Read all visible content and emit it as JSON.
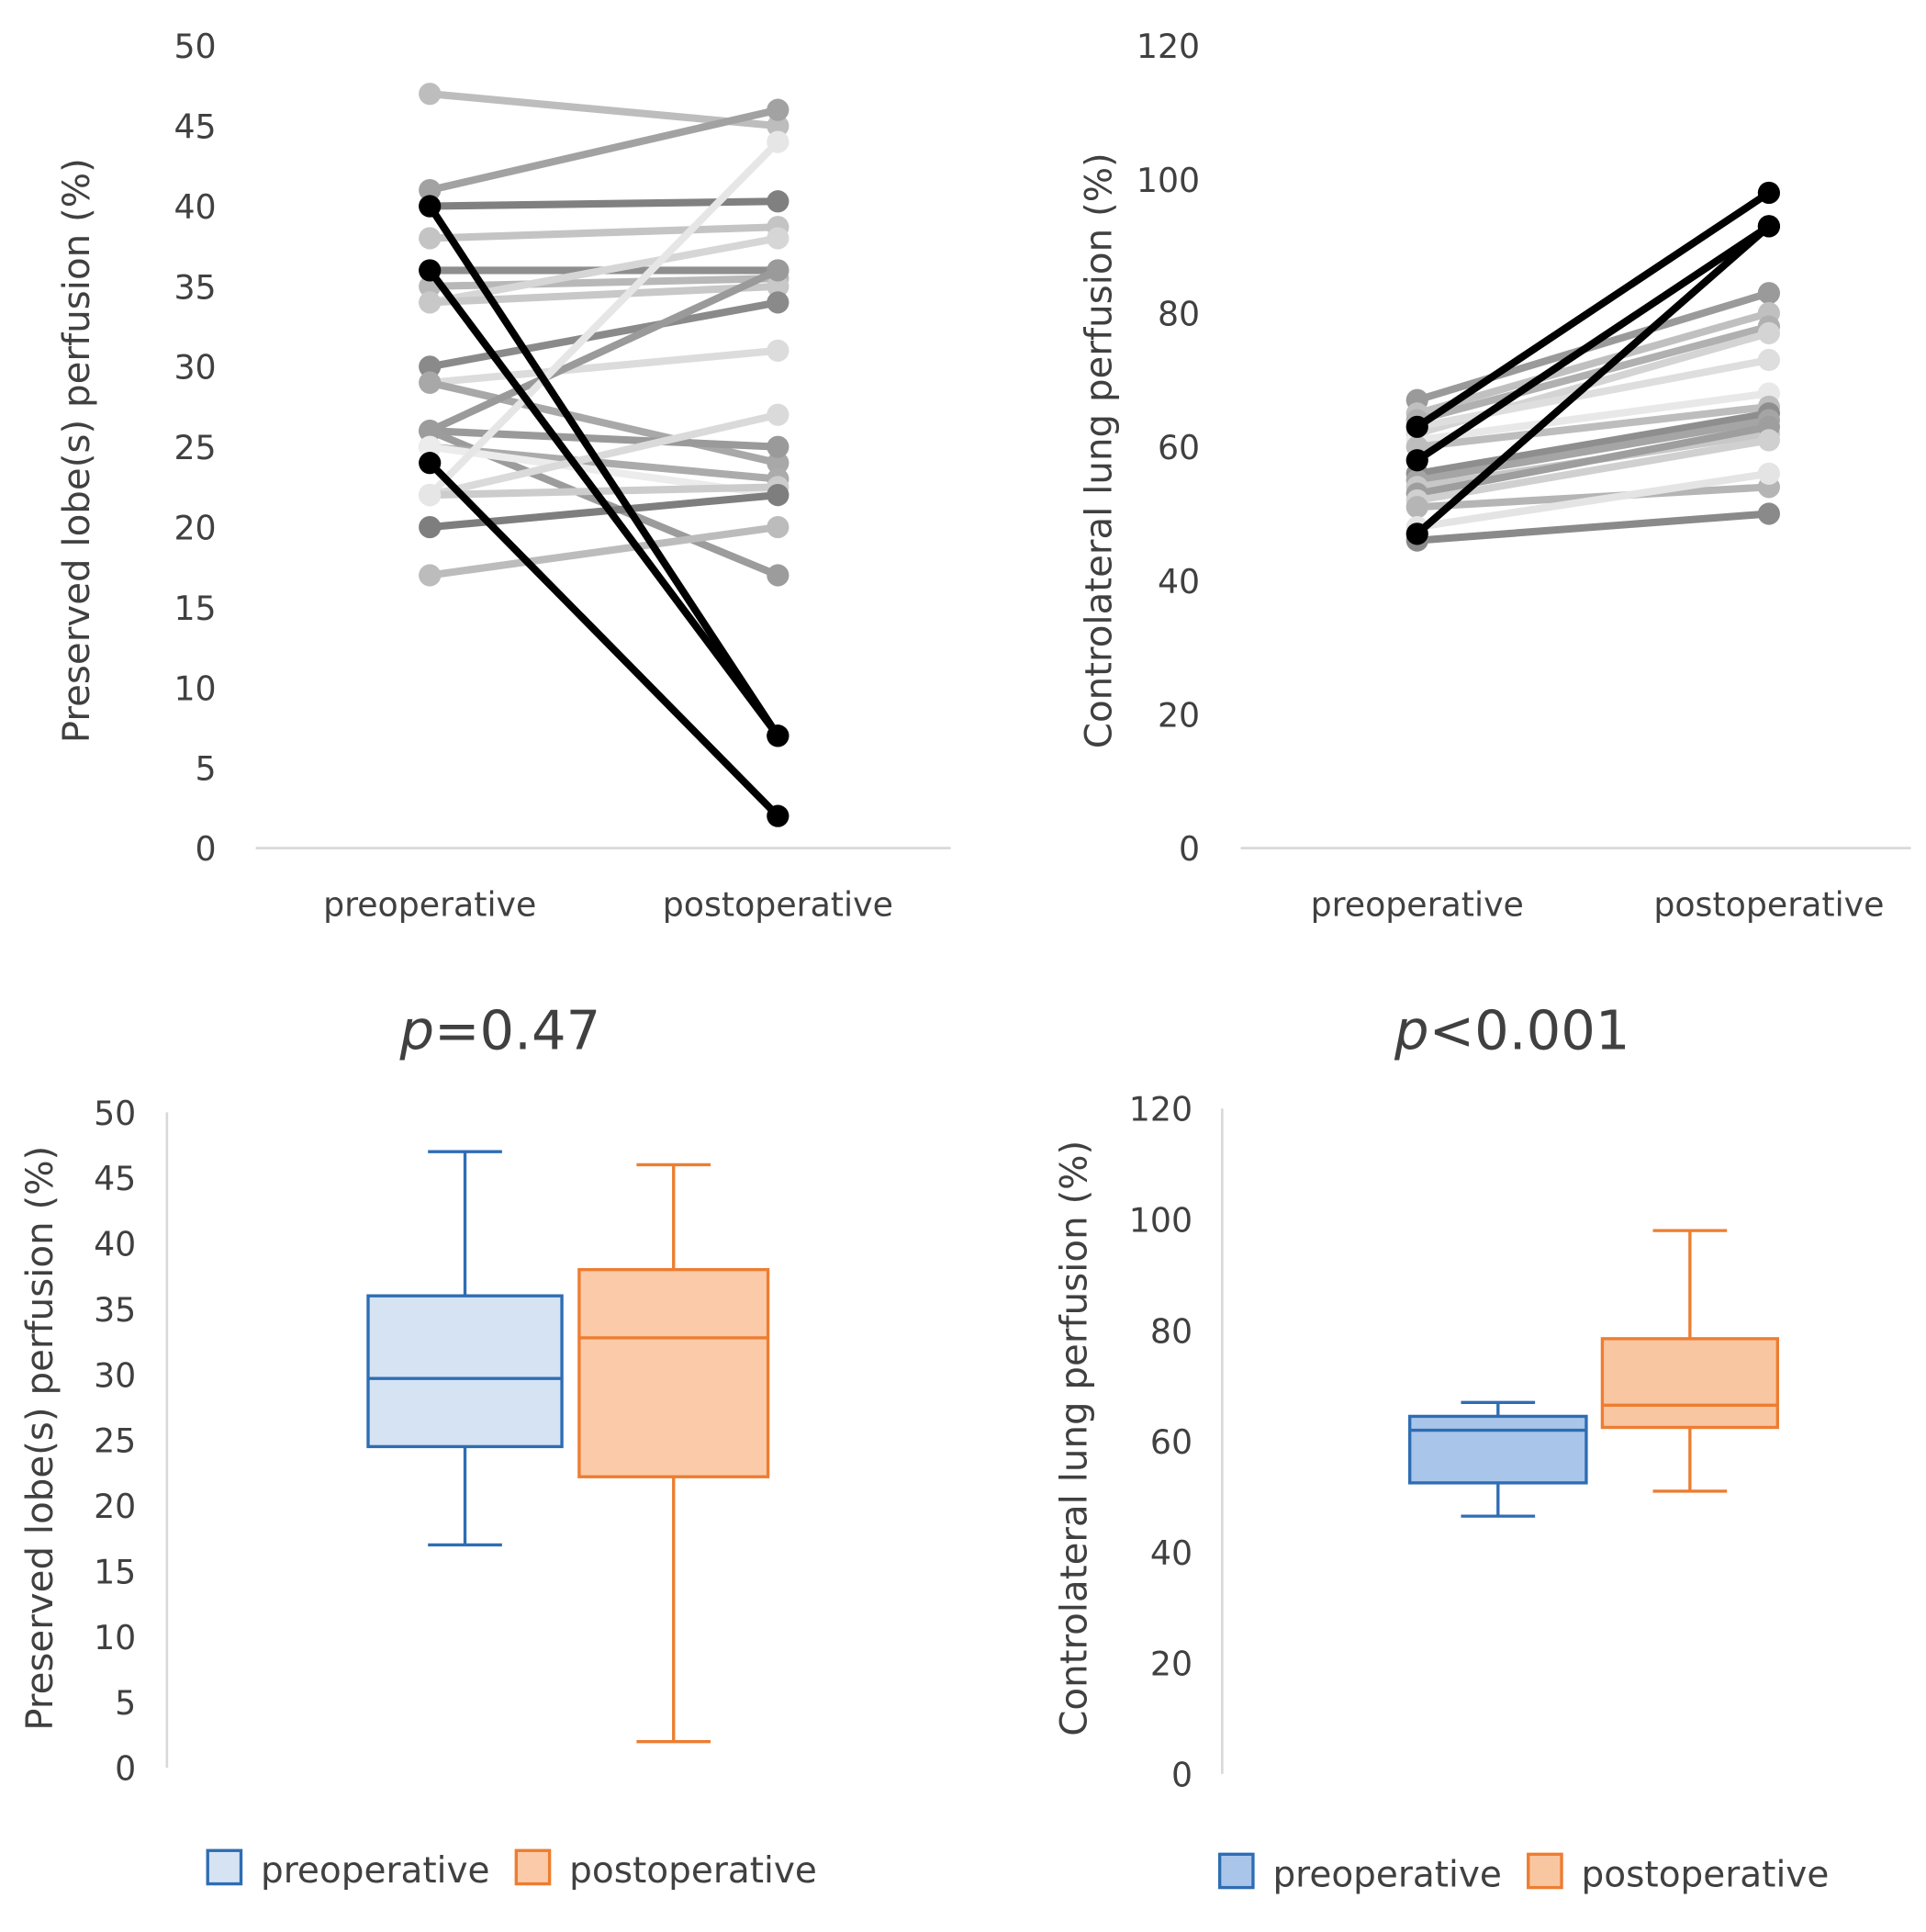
{
  "chart_data": [
    {
      "type": "line",
      "id": "tl",
      "ylabel": "Preserved lobe(s) perfusion (%)",
      "categories": [
        "preoperative",
        "postoperative"
      ],
      "ylim": [
        0,
        50
      ],
      "yticks": [
        0,
        5,
        10,
        15,
        20,
        25,
        30,
        35,
        40,
        45,
        50
      ],
      "series": [
        {
          "pre": 47,
          "post": 45,
          "color": "#bdbdbd"
        },
        {
          "pre": 41,
          "post": 46,
          "color": "#a2a2a2"
        },
        {
          "pre": 40,
          "post": 40.3,
          "color": "#808080"
        },
        {
          "pre": 38,
          "post": 38.7,
          "color": "#c4c4c4"
        },
        {
          "pre": 36,
          "post": 36,
          "color": "#8e8e8e"
        },
        {
          "pre": 35,
          "post": 35.5,
          "color": "#b8b8b8"
        },
        {
          "pre": 34,
          "post": 38,
          "color": "#d6d6d6"
        },
        {
          "pre": 34,
          "post": 35,
          "color": "#c8c8c8"
        },
        {
          "pre": 30,
          "post": 34,
          "color": "#8a8a8a"
        },
        {
          "pre": 29,
          "post": 31,
          "color": "#dcdcdc"
        },
        {
          "pre": 29,
          "post": 24,
          "color": "#a8a8a8"
        },
        {
          "pre": 26,
          "post": 36,
          "color": "#9a9a9a"
        },
        {
          "pre": 26,
          "post": 25,
          "color": "#9a9a9a"
        },
        {
          "pre": 26,
          "post": 17,
          "color": "#9c9c9c"
        },
        {
          "pre": 25,
          "post": 23,
          "color": "#ababab"
        },
        {
          "pre": 25,
          "post": 22,
          "color": "#ececec"
        },
        {
          "pre": 22,
          "post": 27,
          "color": "#dadada"
        },
        {
          "pre": 22,
          "post": 22.5,
          "color": "#cccccc"
        },
        {
          "pre": 20,
          "post": 22,
          "color": "#7e7e7e"
        },
        {
          "pre": 17,
          "post": 20,
          "color": "#bcbcbc"
        },
        {
          "pre": 22,
          "post": 44,
          "color": "#e6e6e6"
        },
        {
          "pre": 40,
          "post": 7,
          "color": "#000000"
        },
        {
          "pre": 36,
          "post": 7,
          "color": "#000000"
        },
        {
          "pre": 24,
          "post": 2,
          "color": "#000000"
        }
      ]
    },
    {
      "type": "line",
      "id": "tr",
      "ylabel": "Controlateral lung perfusion (%)",
      "categories": [
        "preoperative",
        "postoperative"
      ],
      "ylim": [
        0,
        120
      ],
      "yticks": [
        0,
        20,
        40,
        60,
        80,
        100,
        120
      ],
      "series": [
        {
          "pre": 67,
          "post": 83,
          "color": "#9a9a9a"
        },
        {
          "pre": 65,
          "post": 80,
          "color": "#c0c0c0"
        },
        {
          "pre": 64,
          "post": 78,
          "color": "#b0b0b0"
        },
        {
          "pre": 62,
          "post": 77,
          "color": "#d4d4d4"
        },
        {
          "pre": 63,
          "post": 73,
          "color": "#dedede"
        },
        {
          "pre": 61,
          "post": 68,
          "color": "#e8e8e8"
        },
        {
          "pre": 60,
          "post": 66,
          "color": "#bdbdbd"
        },
        {
          "pre": 56,
          "post": 65,
          "color": "#8e8e8e"
        },
        {
          "pre": 55,
          "post": 64,
          "color": "#a5a5a5"
        },
        {
          "pre": 54,
          "post": 62,
          "color": "#c8c8c8"
        },
        {
          "pre": 53,
          "post": 63,
          "color": "#9e9e9e"
        },
        {
          "pre": 52,
          "post": 61,
          "color": "#d0d0d0"
        },
        {
          "pre": 51,
          "post": 54,
          "color": "#b5b5b5"
        },
        {
          "pre": 48,
          "post": 56,
          "color": "#e4e4e4"
        },
        {
          "pre": 46,
          "post": 50,
          "color": "#8a8a8a"
        },
        {
          "pre": 47,
          "post": 93,
          "color": "#000000"
        },
        {
          "pre": 58,
          "post": 93,
          "color": "#000000"
        },
        {
          "pre": 63,
          "post": 98,
          "color": "#000000"
        }
      ]
    },
    {
      "type": "box",
      "id": "bl",
      "title": "=0.47",
      "title_italic": "p",
      "ylabel": "Preserved lobe(s) perfusion (%)",
      "ylim": [
        0,
        50
      ],
      "yticks": [
        0,
        5,
        10,
        15,
        20,
        25,
        30,
        35,
        40,
        45,
        50
      ],
      "legend_position": "bottom",
      "boxes": [
        {
          "name": "preoperative",
          "min": 17,
          "q1": 24.5,
          "median": 29.7,
          "q3": 36,
          "max": 47,
          "stroke": "#2e6db4",
          "fill": "#d6e3f3"
        },
        {
          "name": "postoperative",
          "min": 2,
          "q1": 22.2,
          "median": 32.8,
          "q3": 38,
          "max": 46,
          "stroke": "#ed7d31",
          "fill": "#fbcba9"
        }
      ]
    },
    {
      "type": "box",
      "id": "br",
      "title": "<0.001",
      "title_italic": "p",
      "ylabel": "Controlateral lung perfusion (%)",
      "ylim": [
        0,
        120
      ],
      "yticks": [
        0,
        20,
        40,
        60,
        80,
        100,
        120
      ],
      "legend_position": "bottom",
      "boxes": [
        {
          "name": "preoperative",
          "min": 46.5,
          "q1": 52.5,
          "median": 62,
          "q3": 64.5,
          "max": 67,
          "stroke": "#2e6db4",
          "fill": "#a9c5ea"
        },
        {
          "name": "postoperative",
          "min": 51,
          "q1": 62.5,
          "median": 66.5,
          "q3": 78.5,
          "max": 98,
          "stroke": "#ed7d31",
          "fill": "#f9c6a2"
        }
      ]
    }
  ]
}
